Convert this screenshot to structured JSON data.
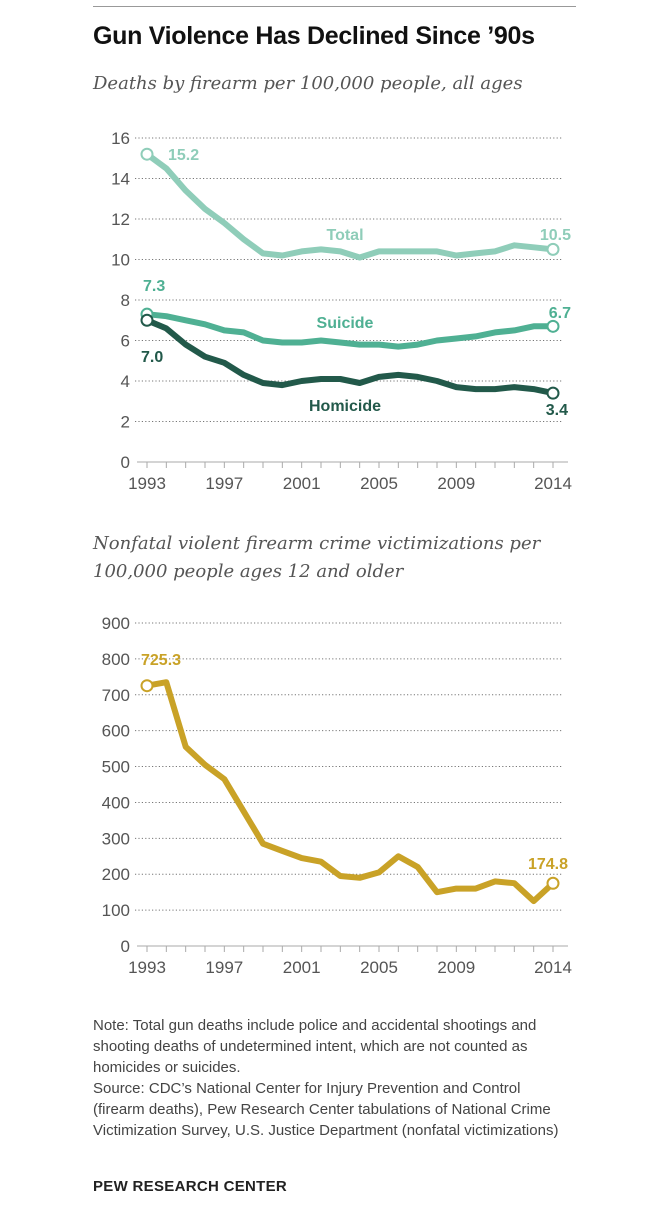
{
  "title": "Gun Violence Has Declined Since ’90s",
  "note": "Note: Total gun deaths include police and accidental shootings and shooting deaths of undetermined intent, which are not counted as homicides or suicides.",
  "source": "Source: CDC’s National Center for Injury Prevention and Control (firearm deaths), Pew Research Center tabulations of National Crime Victimization Survey, U.S. Justice Department (nonfatal victimizations)",
  "brand": "PEW RESEARCH CENTER",
  "chart_data": [
    {
      "type": "line",
      "title": "Deaths by firearm per 100,000 people, all ages",
      "ylim": [
        0,
        16
      ],
      "yticks": [
        0,
        2,
        4,
        6,
        8,
        10,
        12,
        14,
        16
      ],
      "xticks": [
        1993,
        1997,
        2001,
        2005,
        2009,
        2014
      ],
      "grid": true,
      "x": [
        1993,
        1994,
        1995,
        1996,
        1997,
        1998,
        1999,
        2000,
        2001,
        2002,
        2003,
        2004,
        2005,
        2006,
        2007,
        2008,
        2009,
        2010,
        2011,
        2012,
        2013,
        2014
      ],
      "series": [
        {
          "name": "Total",
          "color": "#8fcdb9",
          "start_label": "15.2",
          "end_label": "10.5",
          "values": [
            15.2,
            14.5,
            13.4,
            12.5,
            11.8,
            11.0,
            10.3,
            10.2,
            10.4,
            10.5,
            10.4,
            10.1,
            10.4,
            10.4,
            10.4,
            10.4,
            10.2,
            10.3,
            10.4,
            10.7,
            10.6,
            10.5
          ]
        },
        {
          "name": "Suicide",
          "color": "#4fb093",
          "start_label": "7.3",
          "end_label": "6.7",
          "values": [
            7.3,
            7.2,
            7.0,
            6.8,
            6.5,
            6.4,
            6.0,
            5.9,
            5.9,
            6.0,
            5.9,
            5.8,
            5.8,
            5.7,
            5.8,
            6.0,
            6.1,
            6.2,
            6.4,
            6.5,
            6.7,
            6.7
          ]
        },
        {
          "name": "Homicide",
          "color": "#22594a",
          "start_label": "7.0",
          "end_label": "3.4",
          "values": [
            7.0,
            6.6,
            5.8,
            5.2,
            4.9,
            4.3,
            3.9,
            3.8,
            4.0,
            4.1,
            4.1,
            3.9,
            4.2,
            4.3,
            4.2,
            4.0,
            3.7,
            3.6,
            3.6,
            3.7,
            3.6,
            3.4
          ]
        }
      ]
    },
    {
      "type": "line",
      "title": "Nonfatal violent firearm crime victimizations per 100,000 people ages 12 and older",
      "ylim": [
        0,
        900
      ],
      "yticks": [
        0,
        100,
        200,
        300,
        400,
        500,
        600,
        700,
        800,
        900
      ],
      "xticks": [
        1993,
        1997,
        2001,
        2005,
        2009,
        2014
      ],
      "grid": true,
      "x": [
        1993,
        1994,
        1995,
        1996,
        1997,
        1998,
        1999,
        2000,
        2001,
        2002,
        2003,
        2004,
        2005,
        2006,
        2007,
        2008,
        2009,
        2010,
        2011,
        2012,
        2013,
        2014
      ],
      "series": [
        {
          "color": "#c9a227",
          "start_label": "725.3",
          "end_label": "174.8",
          "values": [
            725.3,
            735,
            555,
            505,
            465,
            375,
            285,
            265,
            245,
            235,
            195,
            190,
            205,
            250,
            220,
            150,
            160,
            160,
            180,
            175,
            125,
            174.8
          ]
        }
      ]
    }
  ]
}
